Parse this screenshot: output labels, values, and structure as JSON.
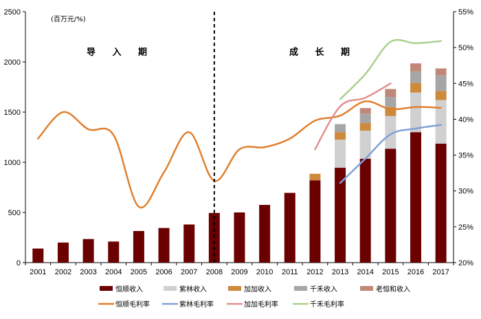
{
  "chart_data": {
    "type": "bar+line",
    "unit_label": "(百万元/%)",
    "phases": [
      "导 入 期",
      "成 长 期"
    ],
    "categories": [
      "2001",
      "2002",
      "2003",
      "2004",
      "2005",
      "2006",
      "2007",
      "2008",
      "2009",
      "2010",
      "2011",
      "2012",
      "2013",
      "2014",
      "2015",
      "2016",
      "2017"
    ],
    "y_left": {
      "range": [
        0,
        2500
      ],
      "ticks": [
        "0",
        "500",
        "1000",
        "1500",
        "2000",
        "2500"
      ]
    },
    "y_right": {
      "range": [
        20,
        55
      ],
      "ticks": [
        "20%",
        "25%",
        "30%",
        "35%",
        "40%",
        "45%",
        "50%",
        "55%"
      ]
    },
    "stack_series": [
      {
        "name": "恒顺收入",
        "color": "#6b0000",
        "values": [
          140,
          200,
          235,
          210,
          315,
          345,
          380,
          495,
          500,
          575,
          695,
          820,
          945,
          1035,
          1135,
          1300,
          1185
        ]
      },
      {
        "name": "紫林收入",
        "color": "#d0d0d0",
        "values": [
          0,
          0,
          0,
          0,
          0,
          0,
          0,
          0,
          0,
          0,
          0,
          0,
          280,
          280,
          325,
          395,
          435
        ]
      },
      {
        "name": "加加收入",
        "color": "#cc8a3c",
        "values": [
          0,
          0,
          0,
          0,
          0,
          0,
          0,
          0,
          0,
          0,
          0,
          65,
          75,
          75,
          90,
          95,
          90
        ]
      },
      {
        "name": "千禾收入",
        "color": "#a6a6a6",
        "values": [
          0,
          0,
          0,
          0,
          0,
          0,
          0,
          0,
          0,
          0,
          0,
          0,
          80,
          95,
          100,
          115,
          155
        ]
      },
      {
        "name": "老恒和收入",
        "color": "#c08878",
        "values": [
          0,
          0,
          0,
          0,
          0,
          0,
          0,
          0,
          0,
          0,
          0,
          0,
          0,
          55,
          80,
          80,
          70
        ]
      }
    ],
    "line_series": [
      {
        "name": "恒顺毛利率",
        "color": "#e07f2e",
        "values": [
          37.3,
          41.0,
          38.6,
          37.8,
          27.8,
          32.6,
          38.2,
          31.4,
          35.8,
          36.1,
          37.3,
          39.8,
          40.5,
          42.5,
          41.4,
          41.7,
          41.6
        ]
      },
      {
        "name": "紫林毛利率",
        "color": "#7f9fd8",
        "values": [
          null,
          null,
          null,
          null,
          null,
          null,
          null,
          null,
          null,
          null,
          null,
          null,
          31.1,
          34.5,
          37.9,
          38.7,
          39.2
        ]
      },
      {
        "name": "加加毛利率",
        "color": "#e08f8f",
        "values": [
          null,
          null,
          null,
          null,
          null,
          null,
          null,
          null,
          null,
          null,
          null,
          35.8,
          41.8,
          43.0,
          45.0,
          null,
          null
        ]
      },
      {
        "name": "千禾毛利率",
        "color": "#a9d18e",
        "values": [
          null,
          null,
          null,
          null,
          null,
          null,
          null,
          null,
          null,
          null,
          null,
          null,
          42.8,
          46.3,
          50.8,
          50.6,
          50.9
        ]
      }
    ],
    "legend": [
      "恒顺收入",
      "紫林收入",
      "加加收入",
      "千禾收入",
      "老恒和收入",
      "恒顺毛利率",
      "紫林毛利率",
      "加加毛利率",
      "千禾毛利率"
    ],
    "phase_divider_after": "2007"
  }
}
